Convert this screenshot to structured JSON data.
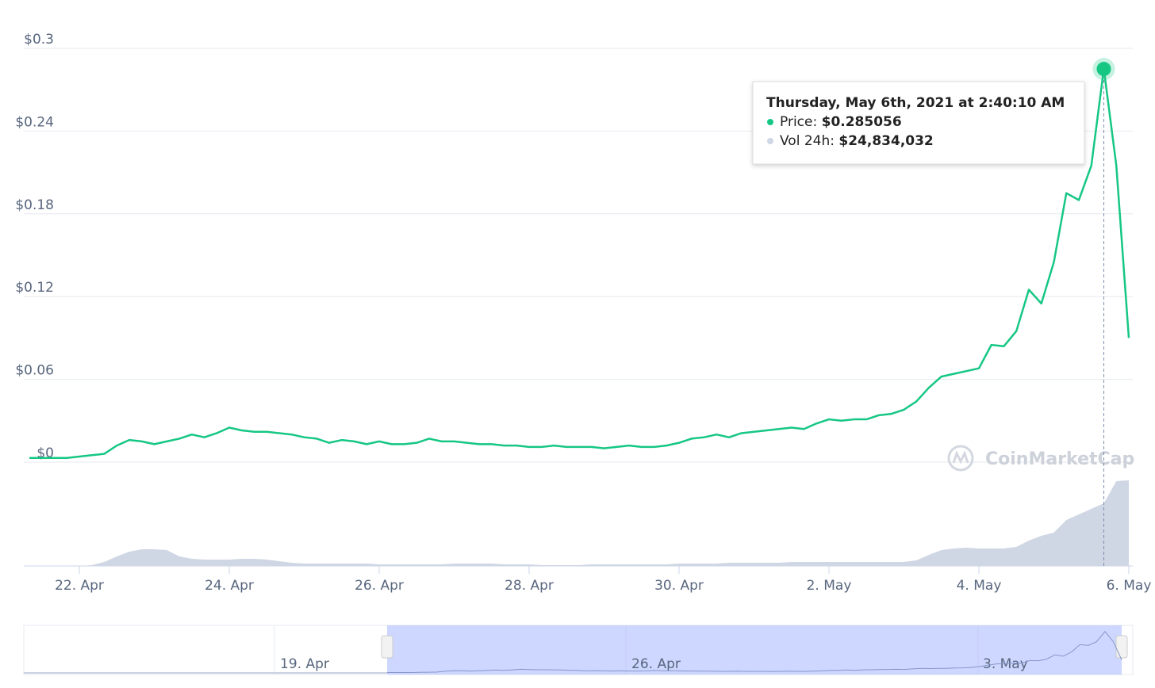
{
  "chart_data": {
    "type": "line",
    "watermark": "CoinMarketCap",
    "categories": [
      null,
      null,
      null,
      null,
      "22. Apr",
      null,
      null,
      null,
      null,
      null,
      null,
      null,
      null,
      null,
      null,
      null,
      "24. Apr",
      null,
      null,
      null,
      null,
      null,
      null,
      null,
      null,
      null,
      null,
      null,
      "26. Apr",
      null,
      null,
      null,
      null,
      null,
      null,
      null,
      null,
      null,
      null,
      null,
      "28. Apr",
      null,
      null,
      null,
      null,
      null,
      null,
      null,
      null,
      null,
      null,
      null,
      "30. Apr",
      null,
      null,
      null,
      null,
      null,
      null,
      null,
      null,
      null,
      null,
      null,
      "2. May",
      null,
      null,
      null,
      null,
      null,
      null,
      null,
      null,
      null,
      null,
      null,
      "4. May",
      null,
      null,
      null,
      null,
      null,
      null,
      null,
      null,
      null,
      null,
      null,
      "6. May"
    ],
    "series": [
      {
        "color": "#16c784",
        "values": [
          0.003,
          0.003,
          0.003,
          0.003,
          0.004,
          0.005,
          0.006,
          0.012,
          0.016,
          0.015,
          0.013,
          0.015,
          0.017,
          0.02,
          0.018,
          0.021,
          0.025,
          0.023,
          0.022,
          0.022,
          0.021,
          0.02,
          0.018,
          0.017,
          0.014,
          0.016,
          0.015,
          0.013,
          0.015,
          0.013,
          0.013,
          0.014,
          0.017,
          0.015,
          0.015,
          0.014,
          0.013,
          0.013,
          0.012,
          0.012,
          0.011,
          0.011,
          0.012,
          0.011,
          0.011,
          0.011,
          0.01,
          0.011,
          0.012,
          0.011,
          0.011,
          0.012,
          0.014,
          0.017,
          0.018,
          0.02,
          0.018,
          0.021,
          0.022,
          0.023,
          0.024,
          0.025,
          0.024,
          0.028,
          0.031,
          0.03,
          0.031,
          0.031,
          0.034,
          0.035,
          0.038,
          0.044,
          0.054,
          0.062,
          0.064,
          0.066,
          0.068,
          0.085,
          0.084,
          0.095,
          0.125,
          0.115,
          0.145,
          0.195,
          0.19,
          0.215,
          0.285056,
          0.215,
          0.09
        ]
      },
      {
        "type": "area",
        "color": "#cfd6e4",
        "values": [
          0,
          0,
          0,
          0,
          0,
          314000,
          1572000,
          3772000,
          5658000,
          6601000,
          6601000,
          6287000,
          3772000,
          2829000,
          2515000,
          2515000,
          2515000,
          2829000,
          2829000,
          2515000,
          1886000,
          1257000,
          943000,
          943000,
          943000,
          943000,
          943000,
          943000,
          629000,
          629000,
          629000,
          629000,
          629000,
          629000,
          943000,
          943000,
          943000,
          943000,
          629000,
          629000,
          629000,
          314000,
          314000,
          314000,
          314000,
          629000,
          629000,
          629000,
          629000,
          629000,
          629000,
          629000,
          943000,
          943000,
          943000,
          943000,
          1257000,
          1257000,
          1257000,
          1257000,
          1257000,
          1572000,
          1572000,
          1572000,
          1572000,
          1572000,
          1572000,
          1572000,
          1572000,
          1572000,
          1572000,
          2200000,
          4401000,
          6287000,
          6916000,
          7230000,
          6916000,
          6916000,
          6916000,
          7545000,
          10059000,
          11945000,
          13203000,
          18233000,
          20433000,
          22634000,
          24834032,
          33636000,
          33950000
        ]
      }
    ],
    "ylim": [
      0,
      0.3
    ],
    "yticks": [
      {
        "value": 0,
        "label": "$0"
      },
      {
        "value": 0.06,
        "label": "$0.06"
      },
      {
        "value": 0.12,
        "label": "$0.12"
      },
      {
        "value": 0.18,
        "label": "$0.18"
      },
      {
        "value": 0.24,
        "label": "$0.24"
      },
      {
        "value": 0.3,
        "label": "$0.3"
      }
    ],
    "grid": true,
    "tooltip": {
      "title": "Thursday, May 6th, 2021 at 2:40:10 AM",
      "items": [
        {
          "name": "Price:",
          "value": "$0.285056",
          "color": "#16c784"
        },
        {
          "name": "Vol 24h:",
          "value": "$24,834,032",
          "color": "#cfd6e4"
        }
      ]
    },
    "navigator": {
      "labels": [
        "19. Apr",
        "26. Apr",
        "3. May"
      ]
    }
  }
}
